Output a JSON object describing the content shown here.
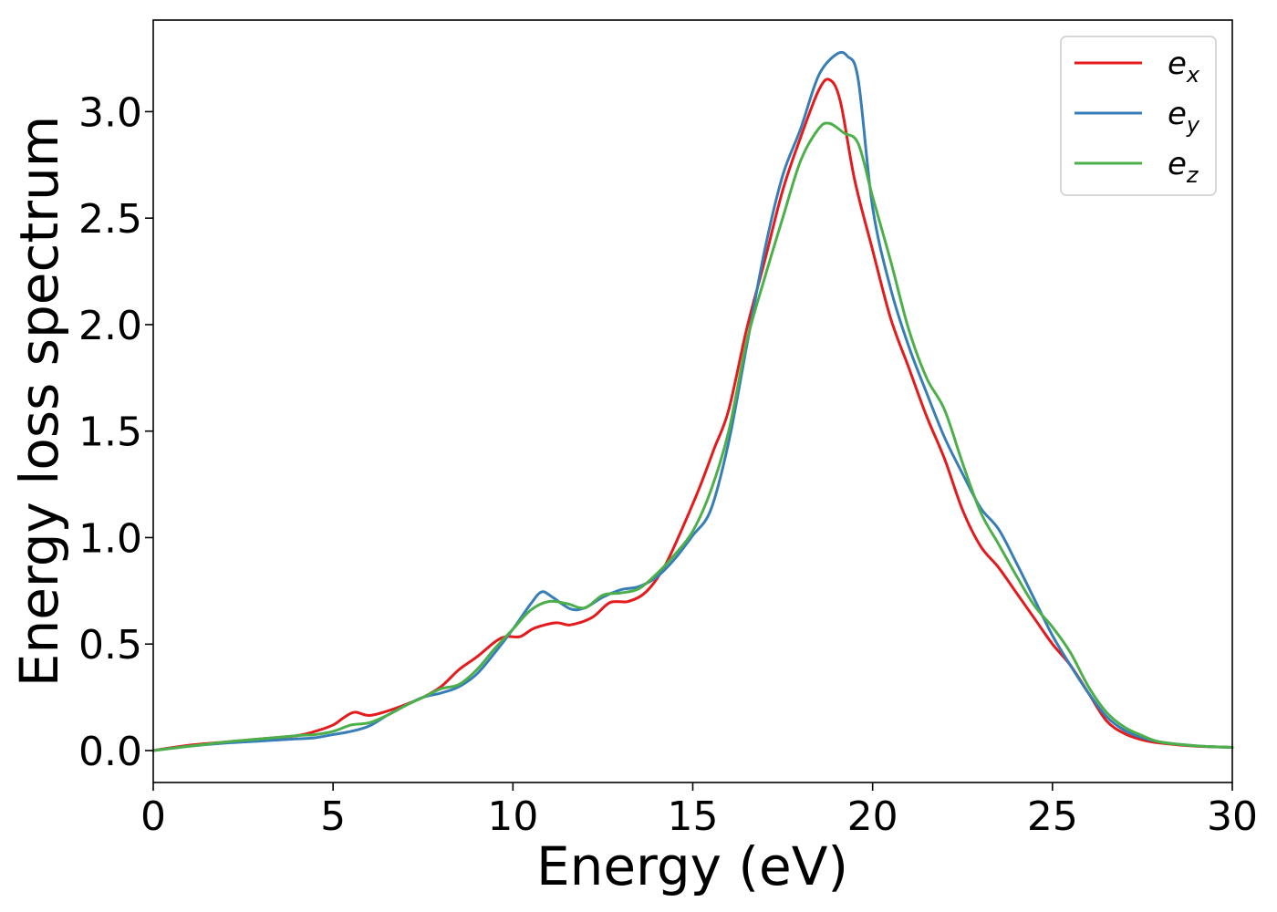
{
  "chart_data": {
    "type": "line",
    "title": "",
    "xlabel": "Energy (eV)",
    "ylabel": "Energy loss spectrum",
    "xlim": [
      0,
      30
    ],
    "ylim": [
      -0.15,
      3.43
    ],
    "xticks": [
      0,
      5,
      10,
      15,
      20,
      25,
      30
    ],
    "xtick_labels": [
      "0",
      "5",
      "10",
      "15",
      "20",
      "25",
      "30"
    ],
    "yticks": [
      0.0,
      0.5,
      1.0,
      1.5,
      2.0,
      2.5,
      3.0
    ],
    "ytick_labels": [
      "0.0",
      "0.5",
      "1.0",
      "1.5",
      "2.0",
      "2.5",
      "3.0"
    ],
    "grid": false,
    "legend_position": "top-right",
    "series": [
      {
        "name": "e",
        "subscript": "x",
        "color": "#e41a1c",
        "points": [
          [
            0,
            0.0
          ],
          [
            1,
            0.025
          ],
          [
            2,
            0.04
          ],
          [
            3,
            0.055
          ],
          [
            4,
            0.07
          ],
          [
            4.5,
            0.09
          ],
          [
            5,
            0.12
          ],
          [
            5.3,
            0.155
          ],
          [
            5.6,
            0.18
          ],
          [
            6,
            0.165
          ],
          [
            6.5,
            0.185
          ],
          [
            7,
            0.215
          ],
          [
            7.5,
            0.25
          ],
          [
            8,
            0.3
          ],
          [
            8.5,
            0.38
          ],
          [
            9,
            0.44
          ],
          [
            9.5,
            0.51
          ],
          [
            9.8,
            0.535
          ],
          [
            10.2,
            0.535
          ],
          [
            10.6,
            0.575
          ],
          [
            11.2,
            0.6
          ],
          [
            11.6,
            0.59
          ],
          [
            12.2,
            0.625
          ],
          [
            12.7,
            0.695
          ],
          [
            13.2,
            0.7
          ],
          [
            13.7,
            0.745
          ],
          [
            14.2,
            0.86
          ],
          [
            14.7,
            1.04
          ],
          [
            15.2,
            1.24
          ],
          [
            15.6,
            1.42
          ],
          [
            16,
            1.6
          ],
          [
            16.5,
            1.98
          ],
          [
            17,
            2.3
          ],
          [
            17.5,
            2.63
          ],
          [
            18,
            2.88
          ],
          [
            18.5,
            3.1
          ],
          [
            18.8,
            3.15
          ],
          [
            19.1,
            3.05
          ],
          [
            19.5,
            2.68
          ],
          [
            20,
            2.35
          ],
          [
            20.5,
            2.03
          ],
          [
            21,
            1.8
          ],
          [
            21.5,
            1.57
          ],
          [
            22,
            1.37
          ],
          [
            22.5,
            1.13
          ],
          [
            23,
            0.96
          ],
          [
            23.5,
            0.86
          ],
          [
            24,
            0.74
          ],
          [
            24.5,
            0.62
          ],
          [
            25,
            0.5
          ],
          [
            25.5,
            0.4
          ],
          [
            26,
            0.27
          ],
          [
            26.5,
            0.14
          ],
          [
            27,
            0.08
          ],
          [
            27.5,
            0.05
          ],
          [
            28,
            0.035
          ],
          [
            29,
            0.02
          ],
          [
            30,
            0.015
          ]
        ]
      },
      {
        "name": "e",
        "subscript": "y",
        "color": "#377eb8",
        "points": [
          [
            0,
            0.0
          ],
          [
            1,
            0.02
          ],
          [
            2,
            0.035
          ],
          [
            3,
            0.045
          ],
          [
            4,
            0.055
          ],
          [
            4.5,
            0.06
          ],
          [
            5,
            0.075
          ],
          [
            5.5,
            0.09
          ],
          [
            6,
            0.115
          ],
          [
            6.5,
            0.165
          ],
          [
            7,
            0.21
          ],
          [
            7.5,
            0.25
          ],
          [
            8,
            0.27
          ],
          [
            8.5,
            0.3
          ],
          [
            9,
            0.36
          ],
          [
            9.5,
            0.46
          ],
          [
            10,
            0.57
          ],
          [
            10.5,
            0.69
          ],
          [
            10.8,
            0.745
          ],
          [
            11.1,
            0.72
          ],
          [
            11.6,
            0.665
          ],
          [
            12,
            0.67
          ],
          [
            12.5,
            0.72
          ],
          [
            13,
            0.755
          ],
          [
            13.5,
            0.77
          ],
          [
            14,
            0.815
          ],
          [
            14.5,
            0.9
          ],
          [
            15,
            1.01
          ],
          [
            15.5,
            1.13
          ],
          [
            16,
            1.45
          ],
          [
            16.5,
            1.9
          ],
          [
            17,
            2.35
          ],
          [
            17.5,
            2.7
          ],
          [
            18,
            2.92
          ],
          [
            18.5,
            3.17
          ],
          [
            19,
            3.27
          ],
          [
            19.3,
            3.26
          ],
          [
            19.6,
            3.15
          ],
          [
            20,
            2.55
          ],
          [
            20.5,
            2.17
          ],
          [
            21,
            1.9
          ],
          [
            21.5,
            1.68
          ],
          [
            22,
            1.47
          ],
          [
            22.5,
            1.3
          ],
          [
            23,
            1.14
          ],
          [
            23.5,
            1.04
          ],
          [
            24,
            0.88
          ],
          [
            24.5,
            0.71
          ],
          [
            25,
            0.54
          ],
          [
            25.5,
            0.4
          ],
          [
            26,
            0.27
          ],
          [
            26.5,
            0.16
          ],
          [
            27,
            0.095
          ],
          [
            27.5,
            0.06
          ],
          [
            28,
            0.04
          ],
          [
            29,
            0.022
          ],
          [
            30,
            0.015
          ]
        ]
      },
      {
        "name": "e",
        "subscript": "z",
        "color": "#4daf4a",
        "points": [
          [
            0,
            0.0
          ],
          [
            1,
            0.02
          ],
          [
            2,
            0.04
          ],
          [
            3,
            0.055
          ],
          [
            4,
            0.07
          ],
          [
            4.5,
            0.075
          ],
          [
            5,
            0.09
          ],
          [
            5.5,
            0.12
          ],
          [
            6,
            0.13
          ],
          [
            6.5,
            0.165
          ],
          [
            7,
            0.21
          ],
          [
            7.5,
            0.25
          ],
          [
            8,
            0.29
          ],
          [
            8.5,
            0.31
          ],
          [
            9,
            0.38
          ],
          [
            9.5,
            0.48
          ],
          [
            10,
            0.57
          ],
          [
            10.5,
            0.66
          ],
          [
            11,
            0.7
          ],
          [
            11.5,
            0.69
          ],
          [
            12,
            0.67
          ],
          [
            12.5,
            0.73
          ],
          [
            13,
            0.74
          ],
          [
            13.5,
            0.76
          ],
          [
            14,
            0.83
          ],
          [
            14.5,
            0.92
          ],
          [
            15,
            1.03
          ],
          [
            15.5,
            1.22
          ],
          [
            16,
            1.5
          ],
          [
            16.5,
            1.92
          ],
          [
            17,
            2.22
          ],
          [
            17.5,
            2.5
          ],
          [
            18,
            2.77
          ],
          [
            18.5,
            2.92
          ],
          [
            18.8,
            2.945
          ],
          [
            19.2,
            2.9
          ],
          [
            19.6,
            2.85
          ],
          [
            20,
            2.6
          ],
          [
            20.5,
            2.3
          ],
          [
            21,
            1.98
          ],
          [
            21.5,
            1.75
          ],
          [
            22,
            1.6
          ],
          [
            22.5,
            1.35
          ],
          [
            23,
            1.12
          ],
          [
            23.5,
            0.97
          ],
          [
            24,
            0.82
          ],
          [
            24.5,
            0.68
          ],
          [
            25,
            0.58
          ],
          [
            25.5,
            0.46
          ],
          [
            26,
            0.3
          ],
          [
            26.5,
            0.18
          ],
          [
            27,
            0.11
          ],
          [
            27.5,
            0.07
          ],
          [
            28,
            0.04
          ],
          [
            29,
            0.022
          ],
          [
            30,
            0.015
          ]
        ]
      }
    ]
  }
}
